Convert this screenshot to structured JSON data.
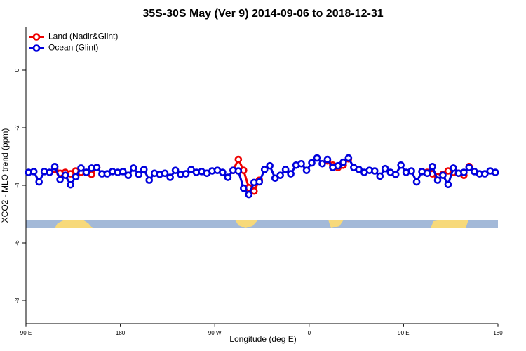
{
  "chart_data": {
    "type": "line",
    "title": "35S-30S May (Ver 9)   2014-09-06 to 2018-12-31",
    "xlabel": "Longitude (deg E)",
    "ylabel": "XCO2 - MLO trend (ppm)",
    "xlim": [
      90,
      540
    ],
    "ylim": [
      -8.8,
      1.5
    ],
    "xticks": [
      {
        "value": 90,
        "label": "90 E"
      },
      180,
      {
        "value": 270,
        "label": "90 W"
      },
      {
        "value": 360,
        "label": "0"
      },
      {
        "value": 450,
        "label": "90 E"
      },
      {
        "value": 540,
        "label": "180"
      }
    ],
    "yticks": [
      0,
      -2,
      -4,
      -6,
      -8
    ],
    "legend": "topleft",
    "x": [
      92.5,
      97.5,
      102.5,
      107.5,
      112.5,
      117.5,
      122.5,
      127.5,
      132.5,
      137.5,
      142.5,
      147.5,
      152.5,
      157.5,
      162.5,
      167.5,
      172.5,
      177.5,
      182.5,
      187.5,
      192.5,
      197.5,
      202.5,
      207.5,
      212.5,
      217.5,
      222.5,
      227.5,
      232.5,
      237.5,
      242.5,
      247.5,
      252.5,
      257.5,
      262.5,
      267.5,
      272.5,
      277.5,
      282.5,
      287.5,
      292.5,
      297.5,
      302.5,
      307.5,
      312.5,
      317.5,
      322.5,
      327.5,
      332.5,
      337.5,
      342.5,
      347.5,
      352.5,
      357.5,
      362.5,
      367.5,
      372.5,
      377.5,
      382.5,
      387.5,
      392.5,
      397.5,
      402.5,
      407.5,
      412.5,
      417.5,
      422.5,
      427.5,
      432.5,
      437.5,
      442.5,
      447.5,
      452.5,
      457.5,
      462.5,
      467.5,
      472.5,
      477.5,
      482.5,
      487.5,
      492.5,
      497.5,
      502.5,
      507.5,
      512.5,
      517.5,
      522.5,
      527.5,
      532.5,
      537.5
    ],
    "series": [
      {
        "name": "Land (Nadir&Glint)",
        "color": "#ee0000",
        "values": [
          null,
          null,
          null,
          null,
          null,
          -3.45,
          -3.58,
          -3.55,
          -3.6,
          -3.5,
          -3.55,
          -3.55,
          -3.62,
          -3.38,
          null,
          null,
          null,
          null,
          null,
          null,
          null,
          null,
          null,
          null,
          null,
          null,
          null,
          null,
          null,
          null,
          null,
          null,
          null,
          null,
          null,
          null,
          null,
          null,
          null,
          -3.48,
          -3.1,
          -3.48,
          -4.08,
          -4.2,
          -3.82,
          null,
          null,
          null,
          null,
          null,
          null,
          null,
          null,
          null,
          null,
          null,
          null,
          -3.15,
          -3.3,
          -3.38,
          -3.3,
          -3.08,
          null,
          null,
          null,
          null,
          null,
          null,
          null,
          null,
          null,
          null,
          null,
          null,
          null,
          null,
          -3.55,
          -3.6,
          -3.7,
          -3.62,
          -3.5,
          -3.55,
          -3.58,
          -3.65,
          -3.35,
          null,
          null,
          null,
          null,
          null
        ]
      },
      {
        "name": "Ocean (Glint)",
        "color": "#0000dd",
        "values": [
          -3.55,
          -3.52,
          -3.88,
          -3.52,
          -3.55,
          -3.35,
          -3.8,
          -3.65,
          -3.98,
          -3.7,
          -3.4,
          -3.55,
          -3.4,
          -3.38,
          -3.6,
          -3.6,
          -3.52,
          -3.55,
          -3.52,
          -3.65,
          -3.4,
          -3.62,
          -3.45,
          -3.82,
          -3.58,
          -3.62,
          -3.58,
          -3.72,
          -3.48,
          -3.62,
          -3.6,
          -3.45,
          -3.55,
          -3.52,
          -3.58,
          -3.5,
          -3.48,
          -3.55,
          -3.72,
          -3.48,
          -3.5,
          -4.1,
          -4.32,
          -3.9,
          -3.88,
          -3.45,
          -3.32,
          -3.75,
          -3.65,
          -3.45,
          -3.6,
          -3.3,
          -3.25,
          -3.48,
          -3.22,
          -3.05,
          -3.25,
          -3.1,
          -3.38,
          -3.32,
          -3.2,
          -3.05,
          -3.38,
          -3.45,
          -3.55,
          -3.48,
          -3.5,
          -3.68,
          -3.42,
          -3.55,
          -3.62,
          -3.3,
          -3.55,
          -3.5,
          -3.88,
          -3.52,
          -3.58,
          -3.35,
          -3.82,
          -3.65,
          -3.97,
          -3.4,
          -3.58,
          -3.55,
          -3.38,
          -3.52,
          -3.6,
          -3.6,
          -3.5,
          -3.55
        ]
      }
    ]
  }
}
